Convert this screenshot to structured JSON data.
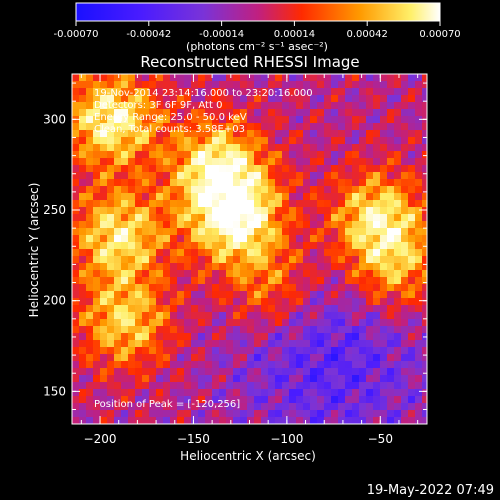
{
  "colorbar": {
    "ticks": [
      "-0.00070",
      "-0.00042",
      "-0.00014",
      "0.00014",
      "0.00042",
      "0.00070"
    ],
    "units_label": "(photons cm⁻² s⁻¹ asec⁻²)",
    "range": [
      -0.0007,
      0.0007
    ],
    "colors": [
      "#1a10ff",
      "#4a1cff",
      "#7a33d8",
      "#c02080",
      "#ff2a00",
      "#ff9a00",
      "#fff06a",
      "#ffffff"
    ]
  },
  "image": {
    "title": "Reconstructed RHESSI Image",
    "info_lines": [
      "19-Nov-2014 23:14:16.000 to 23:20:16.000",
      "Detectors: 3F 6F 9F, Att 0",
      "Energy Range: 25.0 - 50.0 keV",
      "Clean, Total counts: 3.58E+03"
    ],
    "peak_label": "Position of Peak = [-120,256]"
  },
  "axes": {
    "xlabel": "Heliocentric X (arcsec)",
    "ylabel": "Heliocentric Y (arcsec)",
    "xlim": [
      -215,
      -25
    ],
    "ylim": [
      132,
      325
    ],
    "xticks": [
      {
        "value": -200,
        "label": "−200"
      },
      {
        "value": -150,
        "label": "−150"
      },
      {
        "value": -100,
        "label": "−100"
      },
      {
        "value": -50,
        "label": "−50"
      }
    ],
    "yticks": [
      {
        "value": 150,
        "label": "150"
      },
      {
        "value": 200,
        "label": "200"
      },
      {
        "value": 250,
        "label": "250"
      },
      {
        "value": 300,
        "label": "300"
      }
    ]
  },
  "footer": {
    "timestamp": "19-May-2022 07:49"
  }
}
